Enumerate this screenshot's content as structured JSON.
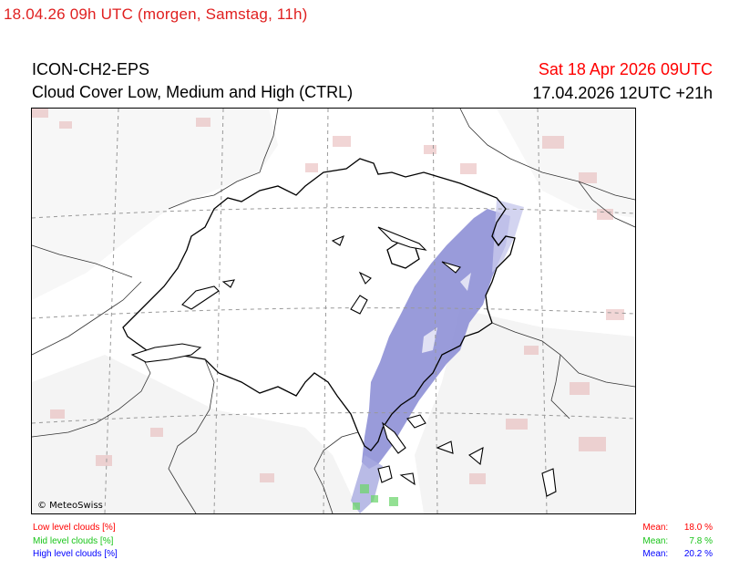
{
  "header": {
    "forecast_time_label": "18.04.26 09h UTC (morgen, Samstag, 11h)",
    "model": "ICON-CH2-EPS",
    "product": "Cloud Cover Low, Medium and High (CTRL)",
    "valid_time": "Sat 18 Apr 2026 09UTC",
    "run_time": "17.04.2026 12UTC +21h"
  },
  "map": {
    "copyright": "© MeteoSwiss",
    "colors": {
      "low": "#e08080",
      "mid": "#60d060",
      "high": "#6f72c8",
      "border": "#000000",
      "grid": "#999999"
    }
  },
  "legend": {
    "low_label": "Low level clouds [%]",
    "mid_label": "Mid level clouds [%]",
    "high_label": "High level clouds [%]"
  },
  "means": {
    "low_label": "Mean:",
    "low_value": "18.0 %",
    "mid_label": "Mean:",
    "mid_value": "7.8 %",
    "high_label": "Mean:",
    "high_value": "20.2 %"
  }
}
